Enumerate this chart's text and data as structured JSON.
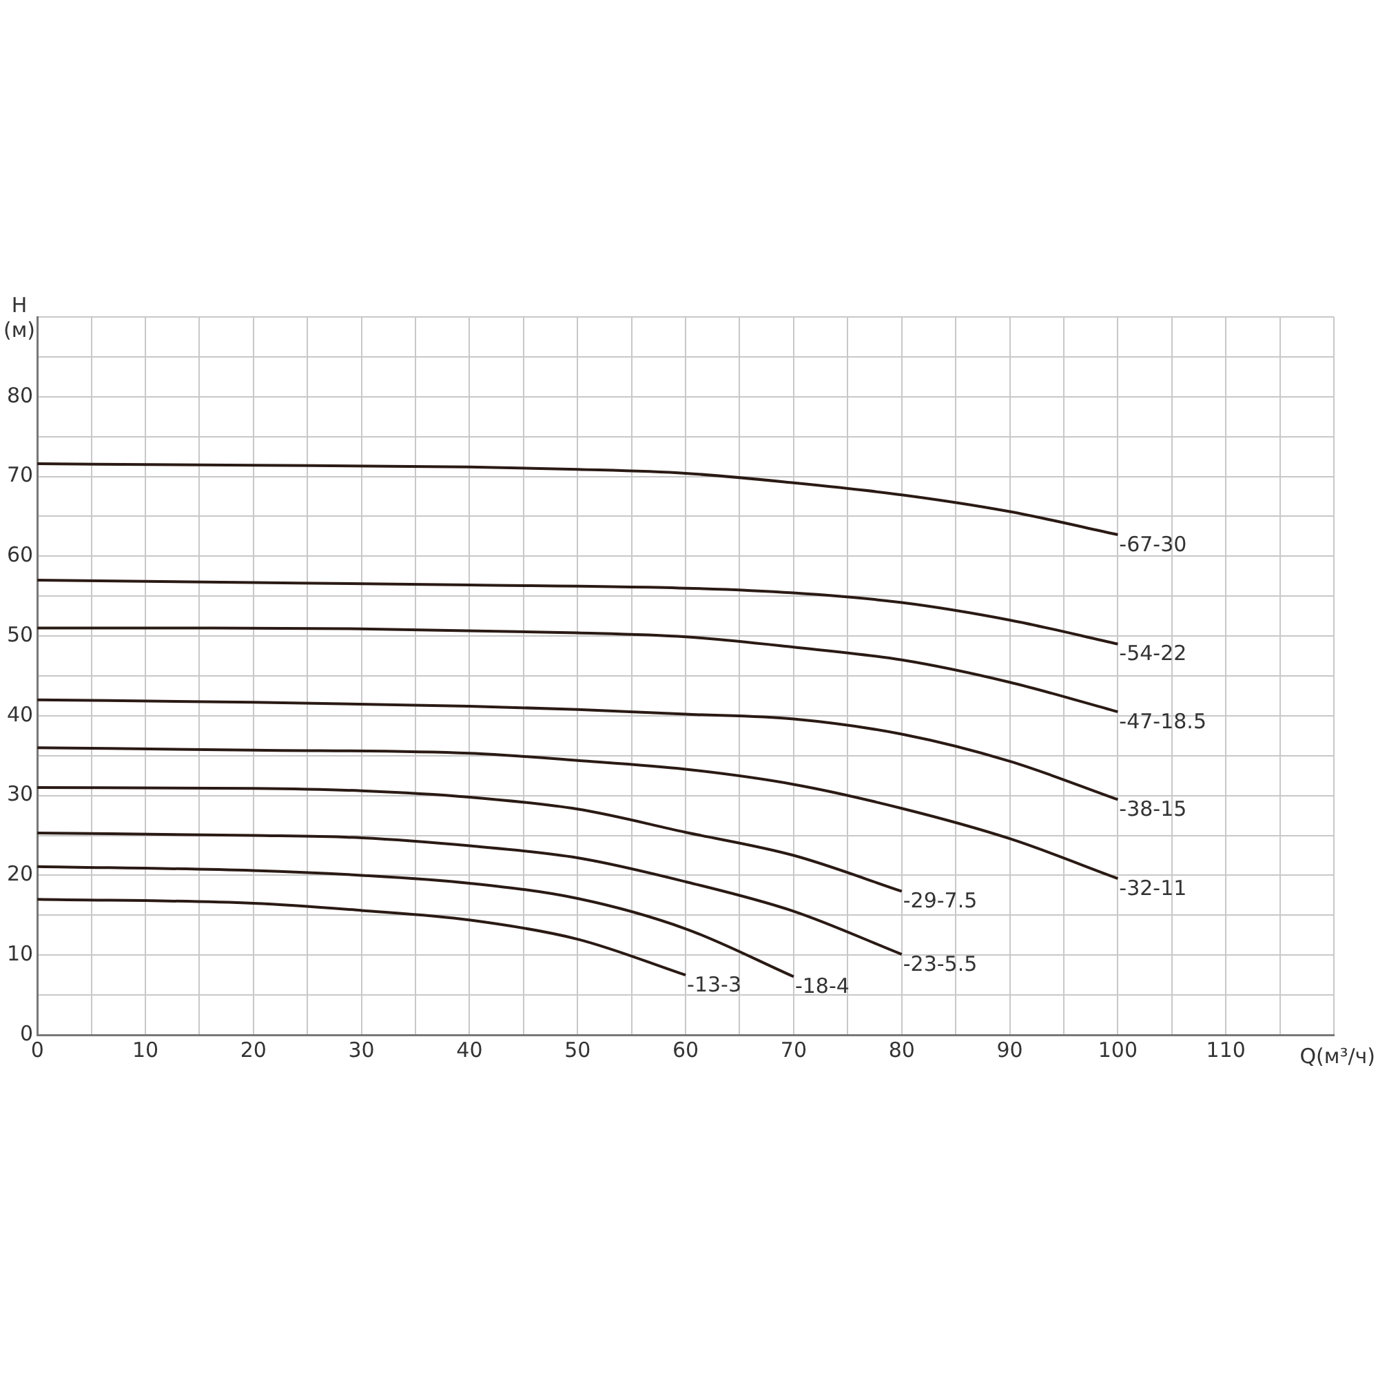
{
  "chart_data": {
    "type": "line",
    "xlabel": "Q(м³/ч)",
    "ylabel": "H\n(м)",
    "xlim": [
      0,
      120
    ],
    "ylim": [
      0,
      90
    ],
    "xticks": [
      0,
      {
        "value": 5,
        "label": null
      },
      10,
      {
        "value": 15,
        "label": null
      },
      20,
      {
        "value": 25,
        "label": null
      },
      30,
      {
        "value": 35,
        "label": null
      },
      40,
      {
        "value": 45,
        "label": null
      },
      50,
      {
        "value": 55,
        "label": null
      },
      60,
      {
        "value": 65,
        "label": null
      },
      70,
      {
        "value": 75,
        "label": null
      },
      80,
      {
        "value": 85,
        "label": null
      },
      90,
      {
        "value": 95,
        "label": null
      },
      100,
      {
        "value": 105,
        "label": null
      },
      110,
      {
        "value": 115,
        "label": null
      },
      {
        "value": 120,
        "label": null
      }
    ],
    "yticks": [
      0,
      {
        "value": 5,
        "label": null
      },
      10,
      {
        "value": 15,
        "label": null
      },
      20,
      {
        "value": 25,
        "label": null
      },
      30,
      {
        "value": 35,
        "label": null
      },
      40,
      {
        "value": 45,
        "label": null
      },
      50,
      {
        "value": 55,
        "label": null
      },
      60,
      {
        "value": 65,
        "label": null
      },
      70,
      {
        "value": 75,
        "label": null
      },
      80,
      {
        "value": 85,
        "label": null
      },
      {
        "value": 90,
        "label": null
      }
    ],
    "grid": true,
    "legend": false,
    "marker": "none",
    "line_style": "solid",
    "series": [
      {
        "name": "-67-30",
        "color": "#2a1a14",
        "x": [
          0,
          20,
          40,
          50,
          60,
          70,
          80,
          90,
          100
        ],
        "values": [
          71.6,
          71.4,
          71.2,
          70.9,
          70.4,
          69.2,
          67.7,
          65.6,
          62.7
        ]
      },
      {
        "name": "-54-22",
        "color": "#2a1a14",
        "x": [
          0,
          20,
          40,
          60,
          70,
          80,
          90,
          100
        ],
        "values": [
          57,
          56.7,
          56.4,
          56,
          55.4,
          54.2,
          52,
          49
        ]
      },
      {
        "name": "-47-18.5",
        "color": "#2a1a14",
        "x": [
          0,
          10,
          30,
          50,
          60,
          70,
          80,
          90,
          100
        ],
        "values": [
          51,
          51,
          50.9,
          50.4,
          49.9,
          48.6,
          47,
          44.2,
          40.5
        ]
      },
      {
        "name": "-38-15",
        "color": "#2a1a14",
        "x": [
          0,
          20,
          40,
          50,
          60,
          70,
          80,
          90,
          100
        ],
        "values": [
          42,
          41.7,
          41.2,
          40.8,
          40.2,
          39.6,
          37.7,
          34.3,
          29.5
        ]
      },
      {
        "name": "-32-11",
        "color": "#2a1a14",
        "x": [
          0,
          20,
          40,
          50,
          60,
          70,
          80,
          90,
          100
        ],
        "values": [
          36,
          35.7,
          35.3,
          34.4,
          33.3,
          31.4,
          28.4,
          24.6,
          19.6
        ]
      },
      {
        "name": "-29-7.5",
        "color": "#2a1a14",
        "x": [
          0,
          20,
          30,
          40,
          50,
          60,
          70,
          80
        ],
        "values": [
          31,
          30.9,
          30.6,
          29.8,
          28.3,
          25.4,
          22.5,
          18
        ]
      },
      {
        "name": "-23-5.5",
        "color": "#2a1a14",
        "x": [
          0,
          20,
          30,
          40,
          50,
          60,
          70,
          80
        ],
        "values": [
          25.3,
          25,
          24.7,
          23.7,
          22.2,
          19.2,
          15.5,
          10.1
        ]
      },
      {
        "name": "-18-4",
        "color": "#2a1a14",
        "x": [
          0,
          20,
          30,
          40,
          50,
          60,
          70
        ],
        "values": [
          21.1,
          20.6,
          20,
          19,
          17.1,
          13.3,
          7.3
        ]
      },
      {
        "name": "-13-3",
        "color": "#2a1a14",
        "x": [
          0,
          20,
          30,
          40,
          50,
          60
        ],
        "values": [
          17,
          16.5,
          15.6,
          14.4,
          12,
          7.5
        ]
      }
    ]
  }
}
